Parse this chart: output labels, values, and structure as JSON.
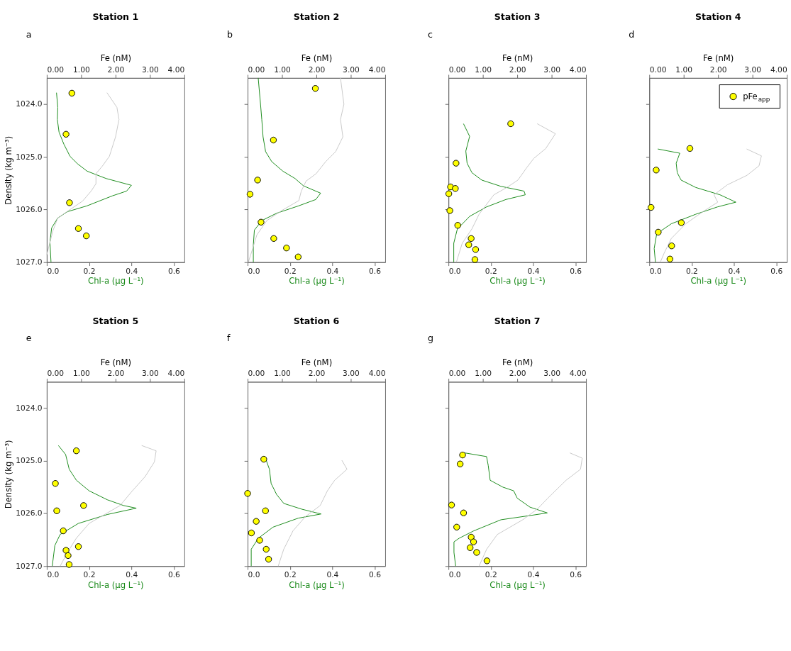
{
  "chart_data": [
    {
      "type": "line",
      "title": "Station 1",
      "annotations": [
        "a"
      ],
      "xlabel": "Chl-a (µg L⁻¹)",
      "x2label": "Fe (nM)",
      "ylabel": "Density (kg m⁻³)",
      "xlim": [
        0,
        0.65
      ],
      "xticks": [
        {
          "value": 0,
          "label": "0.0"
        },
        {
          "value": 0.2,
          "label": "0.2"
        },
        {
          "value": 0.4,
          "label": "0.4"
        },
        {
          "value": 0.6,
          "label": "0.6"
        }
      ],
      "x2lim": [
        0,
        4
      ],
      "x2ticks": [
        {
          "value": 0,
          "label": "0.00"
        },
        {
          "value": 1,
          "label": "1.00"
        },
        {
          "value": 2,
          "label": "2.00"
        },
        {
          "value": 3,
          "label": "3.00"
        },
        {
          "value": 4,
          "label": "4.00"
        }
      ],
      "ylim": [
        1027.0,
        1023.5
      ],
      "yticks": [
        {
          "value": 1024,
          "label": "1024.0"
        },
        {
          "value": 1025,
          "label": "1025.0"
        },
        {
          "value": 1026,
          "label": "1026.0"
        },
        {
          "value": 1027,
          "label": "1027.0"
        }
      ],
      "legend": false,
      "series": [
        {
          "color": "#1a8a1a",
          "x": [
            0.046,
            0.052,
            0.05,
            0.058,
            0.081,
            0.11,
            0.145,
            0.19,
            0.28,
            0.4,
            0.377,
            0.31,
            0.19,
            0.098,
            0.052,
            0.023,
            0.015,
            0.02
          ],
          "values": [
            1023.78,
            1024.06,
            1024.29,
            1024.53,
            1024.76,
            1024.99,
            1025.13,
            1025.27,
            1025.41,
            1025.54,
            1025.65,
            1025.74,
            1025.93,
            1026.04,
            1026.16,
            1026.35,
            1026.62,
            1027.0
          ]
        },
        {
          "axis": "x2",
          "color": "#c8c8c8",
          "x": [
            1.75,
            2.04,
            2.1,
            2.0,
            1.82,
            1.61,
            1.43,
            1.43,
            1.29,
            1.04,
            0.61,
            0.32,
            0.18,
            0.07,
            0.0
          ],
          "values": [
            1023.78,
            1024.06,
            1024.29,
            1024.62,
            1024.99,
            1025.18,
            1025.32,
            1025.51,
            1025.65,
            1025.84,
            1026.03,
            1026.16,
            1026.4,
            1026.68,
            1026.86
          ]
        },
        {
          "type": "scatter",
          "axis": "x2",
          "marker": "circle",
          "color": "#ffff00",
          "x": [
            0.73,
            0.56,
            0.66,
            0.92,
            1.15
          ],
          "values": [
            1023.79,
            1024.57,
            1025.87,
            1026.36,
            1026.5
          ]
        }
      ]
    },
    {
      "type": "line",
      "title": "Station 2",
      "annotations": [
        "b"
      ],
      "xlabel": "Chl-a (µg L⁻¹)",
      "x2label": "Fe (nM)",
      "tick_labels": "x",
      "xlim": [
        0,
        0.65
      ],
      "xticks": [
        {
          "value": 0,
          "label": "0.0"
        },
        {
          "value": 0.2,
          "label": "0.2"
        },
        {
          "value": 0.4,
          "label": "0.4"
        },
        {
          "value": 0.6,
          "label": "0.6"
        }
      ],
      "x2lim": [
        0,
        4
      ],
      "x2ticks": [
        {
          "value": 0,
          "label": "0.00"
        },
        {
          "value": 1,
          "label": "1.00"
        },
        {
          "value": 2,
          "label": "2.00"
        },
        {
          "value": 3,
          "label": "3.00"
        },
        {
          "value": 4,
          "label": "4.00"
        }
      ],
      "ylim": [
        1027.0,
        1023.5
      ],
      "yticks": [
        1024,
        1025,
        1026,
        1027
      ],
      "legend": false,
      "series": [
        {
          "color": "#1a8a1a",
          "x": [
            0.05,
            0.061,
            0.067,
            0.073,
            0.085,
            0.114,
            0.166,
            0.224,
            0.264,
            0.345,
            0.322,
            0.241,
            0.137,
            0.067,
            0.032,
            0.027,
            0.027
          ],
          "values": [
            1023.5,
            1024.0,
            1024.29,
            1024.62,
            1024.9,
            1025.09,
            1025.27,
            1025.41,
            1025.55,
            1025.69,
            1025.81,
            1025.93,
            1026.07,
            1026.21,
            1026.39,
            1026.67,
            1027.0
          ]
        },
        {
          "axis": "x2",
          "color": "#c8c8c8",
          "x": [
            2.7,
            2.8,
            2.7,
            2.77,
            2.56,
            2.27,
            1.99,
            1.7,
            1.56,
            1.49,
            0.99,
            0.56,
            0.27,
            0.09,
            0.02
          ],
          "values": [
            1023.5,
            1024.0,
            1024.29,
            1024.62,
            1024.9,
            1025.09,
            1025.32,
            1025.46,
            1025.65,
            1025.83,
            1026.02,
            1026.21,
            1026.48,
            1026.86,
            1027.0
          ]
        },
        {
          "type": "scatter",
          "axis": "x2",
          "marker": "circle",
          "color": "#ffff00",
          "x": [
            1.97,
            0.75,
            0.29,
            0.07,
            0.39,
            0.76,
            1.13,
            1.47
          ],
          "values": [
            1023.7,
            1024.68,
            1025.44,
            1025.71,
            1026.24,
            1026.55,
            1026.73,
            1026.9
          ]
        }
      ]
    },
    {
      "type": "line",
      "title": "Station 3",
      "annotations": [
        "c"
      ],
      "xlabel": "Chl-a (µg L⁻¹)",
      "x2label": "Fe (nM)",
      "tick_labels": "x",
      "xlim": [
        0,
        0.65
      ],
      "xticks": [
        {
          "value": 0,
          "label": "0.0"
        },
        {
          "value": 0.2,
          "label": "0.2"
        },
        {
          "value": 0.4,
          "label": "0.4"
        },
        {
          "value": 0.6,
          "label": "0.6"
        }
      ],
      "x2lim": [
        0,
        4
      ],
      "x2ticks": [
        {
          "value": 0,
          "label": "0.00"
        },
        {
          "value": 1,
          "label": "1.00"
        },
        {
          "value": 2,
          "label": "2.00"
        },
        {
          "value": 3,
          "label": "3.00"
        },
        {
          "value": 4,
          "label": "4.00"
        }
      ],
      "ylim": [
        1027.0,
        1023.5
      ],
      "yticks": [
        1024,
        1025,
        1026,
        1027
      ],
      "legend": false,
      "series": [
        {
          "color": "#1a8a1a",
          "x": [
            0.071,
            0.1,
            0.082,
            0.088,
            0.111,
            0.157,
            0.248,
            0.357,
            0.363,
            0.271,
            0.18,
            0.1,
            0.042,
            0.025,
            0.025
          ],
          "values": [
            1024.37,
            1024.61,
            1024.89,
            1025.12,
            1025.3,
            1025.44,
            1025.56,
            1025.65,
            1025.72,
            1025.81,
            1025.95,
            1026.13,
            1026.37,
            1026.64,
            1027.0
          ]
        },
        {
          "axis": "x2",
          "color": "#c8c8c8",
          "x": [
            2.58,
            3.11,
            2.83,
            2.48,
            2.27,
            2.02,
            1.7,
            1.32,
            1.11,
            0.89,
            0.68,
            0.4,
            0.23
          ],
          "values": [
            1024.37,
            1024.56,
            1024.84,
            1025.03,
            1025.21,
            1025.44,
            1025.58,
            1025.72,
            1025.9,
            1026.09,
            1026.37,
            1026.64,
            1027.0
          ]
        },
        {
          "type": "scatter",
          "axis": "x2",
          "marker": "circle",
          "color": "#ffff00",
          "x": [
            1.81,
            0.22,
            0.06,
            0.2,
            0.01,
            0.04,
            0.27,
            0.66,
            0.59,
            0.79,
            0.77
          ],
          "values": [
            1024.37,
            1025.12,
            1025.57,
            1025.6,
            1025.7,
            1026.02,
            1026.3,
            1026.55,
            1026.67,
            1026.76,
            1026.95
          ]
        }
      ]
    },
    {
      "type": "line",
      "title": "Station 4",
      "annotations": [
        "d"
      ],
      "xlabel": "Chl-a (µg L⁻¹)",
      "x2label": "Fe (nM)",
      "tick_labels": "x",
      "xlim": [
        0,
        0.65
      ],
      "xticks": [
        {
          "value": 0,
          "label": "0.0"
        },
        {
          "value": 0.2,
          "label": "0.2"
        },
        {
          "value": 0.4,
          "label": "0.4"
        },
        {
          "value": 0.6,
          "label": "0.6"
        }
      ],
      "x2lim": [
        0,
        4
      ],
      "x2ticks": [
        {
          "value": 0,
          "label": "0.00"
        },
        {
          "value": 1,
          "label": "1.00"
        },
        {
          "value": 2,
          "label": "2.00"
        },
        {
          "value": 3,
          "label": "3.00"
        },
        {
          "value": 4,
          "label": "4.00"
        }
      ],
      "ylim": [
        1027.0,
        1023.5
      ],
      "yticks": [
        1024,
        1025,
        1026,
        1027
      ],
      "legend": "top right",
      "series": [
        {
          "color": "#1a8a1a",
          "x": [
            0.04,
            0.144,
            0.127,
            0.132,
            0.15,
            0.219,
            0.334,
            0.409,
            0.322,
            0.219,
            0.104,
            0.035,
            0.023,
            0.029
          ],
          "values": [
            1024.85,
            1024.93,
            1025.12,
            1025.3,
            1025.44,
            1025.58,
            1025.72,
            1025.86,
            1025.95,
            1026.09,
            1026.27,
            1026.46,
            1026.74,
            1027.0
          ]
        },
        {
          "axis": "x2",
          "color": "#c8c8c8",
          "x": [
            2.83,
            3.26,
            3.19,
            2.84,
            2.27,
            1.88,
            1.99,
            1.56,
            1.06,
            0.64,
            0.43,
            0.32
          ],
          "values": [
            1024.85,
            1024.98,
            1025.17,
            1025.35,
            1025.53,
            1025.72,
            1025.86,
            1026.04,
            1026.27,
            1026.55,
            1026.83,
            1027.0
          ]
        },
        {
          "type": "scatter",
          "axis": "x2",
          "marker": "circle",
          "name": "pFe$_{app}$",
          "color": "#ffff00",
          "x": [
            1.18,
            0.2,
            0.05,
            0.93,
            0.26,
            0.65,
            0.6
          ],
          "values": [
            1024.84,
            1025.25,
            1025.96,
            1026.25,
            1026.43,
            1026.69,
            1026.94
          ]
        }
      ]
    },
    {
      "type": "line",
      "title": "Station 5",
      "annotations": [
        "e"
      ],
      "xlabel": "Chl-a (µg L⁻¹)",
      "x2label": "Fe (nM)",
      "ylabel": "Density (kg m⁻³)",
      "xlim": [
        0,
        0.65
      ],
      "xticks": [
        {
          "value": 0,
          "label": "0.0"
        },
        {
          "value": 0.2,
          "label": "0.2"
        },
        {
          "value": 0.4,
          "label": "0.4"
        },
        {
          "value": 0.6,
          "label": "0.6"
        }
      ],
      "x2lim": [
        0,
        4
      ],
      "x2ticks": [
        {
          "value": 0,
          "label": "0.00"
        },
        {
          "value": 1,
          "label": "1.00"
        },
        {
          "value": 2,
          "label": "2.00"
        },
        {
          "value": 3,
          "label": "3.00"
        },
        {
          "value": 4,
          "label": "4.00"
        }
      ],
      "ylim": [
        1027.0,
        1023.5
      ],
      "yticks": [
        {
          "value": 1024,
          "label": "1024.0"
        },
        {
          "value": 1025,
          "label": "1025.0"
        },
        {
          "value": 1026,
          "label": "1026.0"
        },
        {
          "value": 1027,
          "label": "1027.0"
        }
      ],
      "legend": false,
      "series": [
        {
          "color": "#1a8a1a",
          "x": [
            0.055,
            0.089,
            0.106,
            0.14,
            0.2,
            0.286,
            0.363,
            0.423,
            0.286,
            0.149,
            0.063,
            0.038,
            0.026
          ],
          "values": [
            1024.71,
            1024.88,
            1025.16,
            1025.37,
            1025.57,
            1025.74,
            1025.85,
            1025.9,
            1026.02,
            1026.19,
            1026.4,
            1026.61,
            1027.0
          ]
        },
        {
          "axis": "x2",
          "color": "#c8c8c8",
          "x": [
            2.76,
            3.18,
            3.13,
            2.86,
            2.49,
            2.13,
            1.76,
            1.23,
            0.86,
            0.6,
            0.39
          ],
          "values": [
            1024.71,
            1024.81,
            1025.02,
            1025.3,
            1025.57,
            1025.85,
            1025.99,
            1026.19,
            1026.47,
            1026.74,
            1027.0
          ]
        },
        {
          "type": "scatter",
          "axis": "x2",
          "marker": "circle",
          "color": "#ffff00",
          "x": [
            0.86,
            0.25,
            1.07,
            0.29,
            0.48,
            0.92,
            0.56,
            0.62,
            0.65
          ],
          "values": [
            1024.81,
            1025.43,
            1025.85,
            1025.95,
            1026.33,
            1026.63,
            1026.7,
            1026.8,
            1026.97
          ]
        }
      ]
    },
    {
      "type": "line",
      "title": "Station 6",
      "annotations": [
        "f"
      ],
      "xlabel": "Chl-a (µg L⁻¹)",
      "x2label": "Fe (nM)",
      "tick_labels": "x",
      "xlim": [
        0,
        0.65
      ],
      "xticks": [
        {
          "value": 0,
          "label": "0.0"
        },
        {
          "value": 0.2,
          "label": "0.2"
        },
        {
          "value": 0.4,
          "label": "0.4"
        },
        {
          "value": 0.6,
          "label": "0.6"
        }
      ],
      "x2lim": [
        0,
        4
      ],
      "x2ticks": [
        {
          "value": 0,
          "label": "0.00"
        },
        {
          "value": 1,
          "label": "1.00"
        },
        {
          "value": 2,
          "label": "2.00"
        },
        {
          "value": 3,
          "label": "3.00"
        },
        {
          "value": 4,
          "label": "4.00"
        }
      ],
      "ylim": [
        1027.0,
        1023.5
      ],
      "yticks": [
        1024,
        1025,
        1026,
        1027
      ],
      "legend": false,
      "series": [
        {
          "color": "#1a8a1a",
          "x": [
            0.086,
            0.103,
            0.111,
            0.137,
            0.171,
            0.257,
            0.347,
            0.239,
            0.12,
            0.051,
            0.017,
            0.017
          ],
          "values": [
            1024.97,
            1025.16,
            1025.43,
            1025.64,
            1025.81,
            1025.92,
            1026.01,
            1026.09,
            1026.26,
            1026.47,
            1026.68,
            1027.0
          ]
        },
        {
          "axis": "x2",
          "color": "#c8c8c8",
          "x": [
            2.74,
            2.89,
            2.53,
            2.32,
            2.11,
            1.68,
            1.32,
            1.05,
            0.89
          ],
          "values": [
            1024.99,
            1025.16,
            1025.37,
            1025.57,
            1025.85,
            1026.06,
            1026.33,
            1026.68,
            1027.0
          ]
        },
        {
          "type": "scatter",
          "axis": "x2",
          "marker": "circle",
          "color": "#ffff00",
          "x": [
            0.47,
            0.0,
            0.52,
            0.25,
            0.11,
            0.35,
            0.54,
            0.61
          ],
          "values": [
            1024.97,
            1025.62,
            1025.95,
            1026.15,
            1026.37,
            1026.51,
            1026.68,
            1026.87
          ]
        }
      ]
    },
    {
      "type": "line",
      "title": "Station 7",
      "annotations": [
        "g"
      ],
      "xlabel": "Chl-a (µg L⁻¹)",
      "x2label": "Fe (nM)",
      "tick_labels": "x",
      "xlim": [
        0,
        0.65
      ],
      "xticks": [
        {
          "value": 0,
          "label": "0.0"
        },
        {
          "value": 0.2,
          "label": "0.2"
        },
        {
          "value": 0.4,
          "label": "0.4"
        },
        {
          "value": 0.6,
          "label": "0.6"
        }
      ],
      "x2lim": [
        0,
        4
      ],
      "x2ticks": [
        {
          "value": 0,
          "label": "0.00"
        },
        {
          "value": 1,
          "label": "1.00"
        },
        {
          "value": 2,
          "label": "2.00"
        },
        {
          "value": 3,
          "label": "3.00"
        },
        {
          "value": 4,
          "label": "4.00"
        }
      ],
      "ylim": [
        1027.0,
        1023.5
      ],
      "yticks": [
        1024,
        1025,
        1026,
        1027
      ],
      "legend": false,
      "series": [
        {
          "color": "#1a8a1a",
          "x": [
            0.077,
            0.18,
            0.188,
            0.197,
            0.257,
            0.308,
            0.325,
            0.385,
            0.467,
            0.385,
            0.248,
            0.12,
            0.051,
            0.026,
            0.026,
            0.034
          ],
          "values": [
            1024.85,
            1024.92,
            1025.09,
            1025.37,
            1025.5,
            1025.57,
            1025.71,
            1025.88,
            1025.99,
            1026.04,
            1026.12,
            1026.33,
            1026.47,
            1026.54,
            1026.74,
            1027.0
          ]
        },
        {
          "axis": "x2",
          "color": "#c8c8c8",
          "x": [
            3.53,
            3.89,
            3.84,
            3.42,
            2.89,
            2.58,
            2.16,
            1.42,
            1.11,
            0.89
          ],
          "values": [
            1024.85,
            1024.95,
            1025.16,
            1025.37,
            1025.71,
            1025.92,
            1026.12,
            1026.4,
            1026.68,
            1027.0
          ]
        },
        {
          "type": "scatter",
          "axis": "x2",
          "marker": "circle",
          "color": "#ffff00",
          "x": [
            0.41,
            0.34,
            0.09,
            0.44,
            0.24,
            0.66,
            0.73,
            0.63,
            0.82,
            1.12
          ],
          "values": [
            1024.89,
            1025.06,
            1025.84,
            1025.99,
            1026.26,
            1026.45,
            1026.54,
            1026.65,
            1026.74,
            1026.9
          ]
        }
      ]
    }
  ]
}
